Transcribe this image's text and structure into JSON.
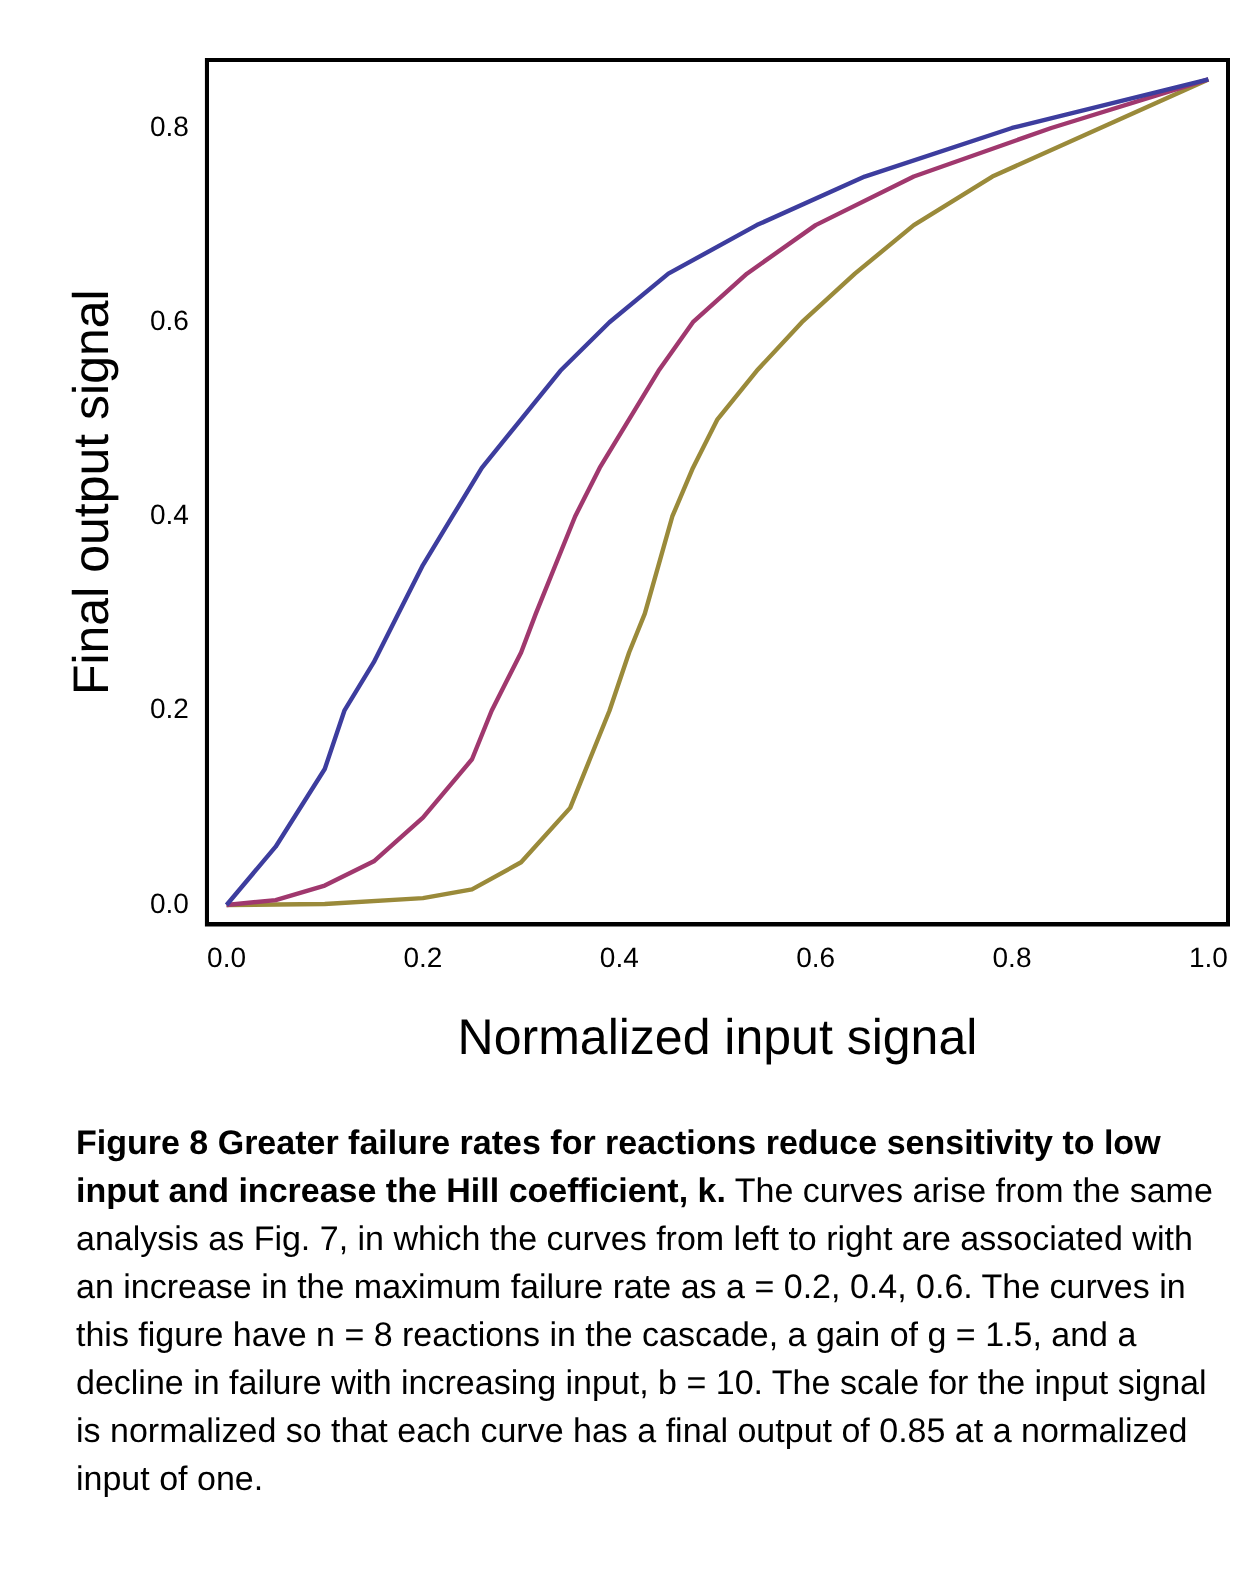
{
  "chart_data": {
    "type": "line",
    "xlabel": "Normalized input signal",
    "ylabel": "Final output signal",
    "xlim": [
      -0.02,
      1.02
    ],
    "ylim": [
      -0.02,
      0.87
    ],
    "xticks": [
      {
        "value": 0,
        "label": "0.0"
      },
      0.2,
      0.4,
      0.6,
      0.8,
      {
        "value": 1,
        "label": "1.0"
      }
    ],
    "yticks": [
      {
        "value": 0,
        "label": "0.0"
      },
      0.2,
      0.4,
      0.6,
      0.8
    ],
    "grid": false,
    "legend": false,
    "marker": "none",
    "line_style": "solid",
    "series": [
      {
        "color": "#3d3d9e",
        "x": [
          0,
          0.05,
          0.1,
          0.12,
          0.15,
          0.175,
          0.2,
          0.23,
          0.26,
          0.3,
          0.34,
          0.39,
          0.45,
          0.54,
          0.65,
          0.8,
          1
        ],
        "values": [
          0,
          0.06,
          0.14,
          0.2,
          0.25,
          0.3,
          0.35,
          0.4,
          0.45,
          0.5,
          0.55,
          0.6,
          0.65,
          0.7,
          0.75,
          0.8,
          0.85
        ]
      },
      {
        "color": "#a0386e",
        "x": [
          0,
          0.05,
          0.1,
          0.15,
          0.2,
          0.25,
          0.27,
          0.3,
          0.315,
          0.335,
          0.355,
          0.38,
          0.41,
          0.44,
          0.475,
          0.53,
          0.6,
          0.7,
          0.84,
          1
        ],
        "values": [
          0,
          0.005,
          0.02,
          0.045,
          0.09,
          0.15,
          0.2,
          0.26,
          0.3,
          0.35,
          0.4,
          0.45,
          0.5,
          0.55,
          0.6,
          0.65,
          0.7,
          0.75,
          0.8,
          0.85
        ]
      },
      {
        "color": "#9a8a3a",
        "x": [
          0,
          0.1,
          0.2,
          0.25,
          0.3,
          0.35,
          0.37,
          0.39,
          0.41,
          0.426,
          0.44,
          0.454,
          0.475,
          0.5,
          0.54,
          0.586,
          0.64,
          0.7,
          0.78,
          0.89,
          1
        ],
        "values": [
          0,
          0.001,
          0.007,
          0.016,
          0.044,
          0.1,
          0.15,
          0.2,
          0.26,
          0.3,
          0.35,
          0.4,
          0.45,
          0.5,
          0.55,
          0.6,
          0.65,
          0.7,
          0.75,
          0.8,
          0.85
        ]
      }
    ],
    "annotations": [
      "Figure 8  Greater failure rates for reactions reduce sensitivity to low input and increase the Hill coefficient, k.",
      "The curves arise from the same analysis as Fig. 7, in which the curves from left to right are associated with an increase in the maximum failure rate as a = 0.2, 0.4, 0.6. The curves in this figure have n = 8 reactions in the cascade, a gain of g = 1.5, and a decline in failure with increasing input, b = 10. The scale for the input signal is normalized so that each curve has a final output of 0.85 at a normalized input of one."
    ]
  }
}
